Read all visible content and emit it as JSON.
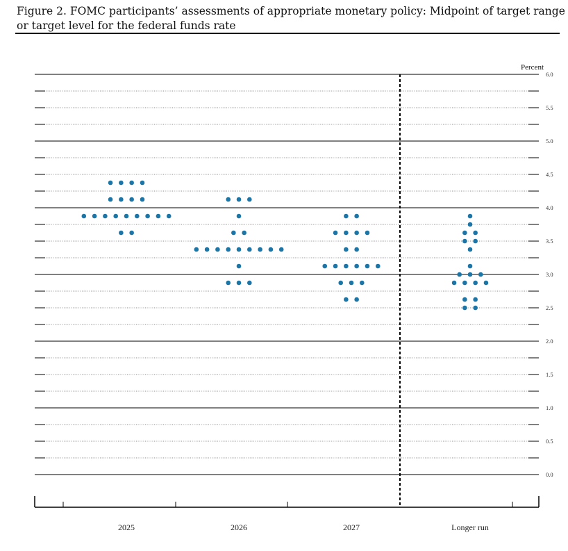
{
  "title": "Figure 2.  FOMC participants’ assessments of appropriate monetary policy:  Midpoint of target range or target level for the federal funds rate",
  "chart_data": {
    "type": "scatter",
    "unit_label": "Percent",
    "ylim": [
      0,
      6.0
    ],
    "y_ticks": [
      "0.0",
      "0.5",
      "1.0",
      "1.5",
      "2.0",
      "2.5",
      "3.0",
      "3.5",
      "4.0",
      "4.5",
      "5.0",
      "5.5",
      "6.0"
    ],
    "grid": "dotted horizontal lines every 0.25; solid at whole percents",
    "dot_color": "#1b75a6",
    "categories": [
      "2025",
      "2026",
      "2027",
      "Longer run"
    ],
    "series": [
      {
        "category": "2025",
        "dots": [
          {
            "y": 4.375,
            "count": 4
          },
          {
            "y": 4.125,
            "count": 4
          },
          {
            "y": 3.875,
            "count": 9
          },
          {
            "y": 3.625,
            "count": 2
          }
        ]
      },
      {
        "category": "2026",
        "dots": [
          {
            "y": 4.125,
            "count": 3
          },
          {
            "y": 3.875,
            "count": 1
          },
          {
            "y": 3.625,
            "count": 2
          },
          {
            "y": 3.375,
            "count": 9
          },
          {
            "y": 3.125,
            "count": 1
          },
          {
            "y": 2.875,
            "count": 3
          }
        ]
      },
      {
        "category": "2027",
        "dots": [
          {
            "y": 3.875,
            "count": 2
          },
          {
            "y": 3.625,
            "count": 4
          },
          {
            "y": 3.375,
            "count": 2
          },
          {
            "y": 3.125,
            "count": 6
          },
          {
            "y": 2.875,
            "count": 3
          },
          {
            "y": 2.625,
            "count": 2
          }
        ]
      },
      {
        "category": "Longer run",
        "dots": [
          {
            "y": 3.875,
            "count": 1
          },
          {
            "y": 3.75,
            "count": 1
          },
          {
            "y": 3.625,
            "count": 2
          },
          {
            "y": 3.5,
            "count": 2
          },
          {
            "y": 3.375,
            "count": 1
          },
          {
            "y": 3.125,
            "count": 1
          },
          {
            "y": 3.0,
            "count": 3
          },
          {
            "y": 2.875,
            "count": 4
          },
          {
            "y": 2.625,
            "count": 2
          },
          {
            "y": 2.5,
            "count": 2
          }
        ]
      }
    ]
  }
}
